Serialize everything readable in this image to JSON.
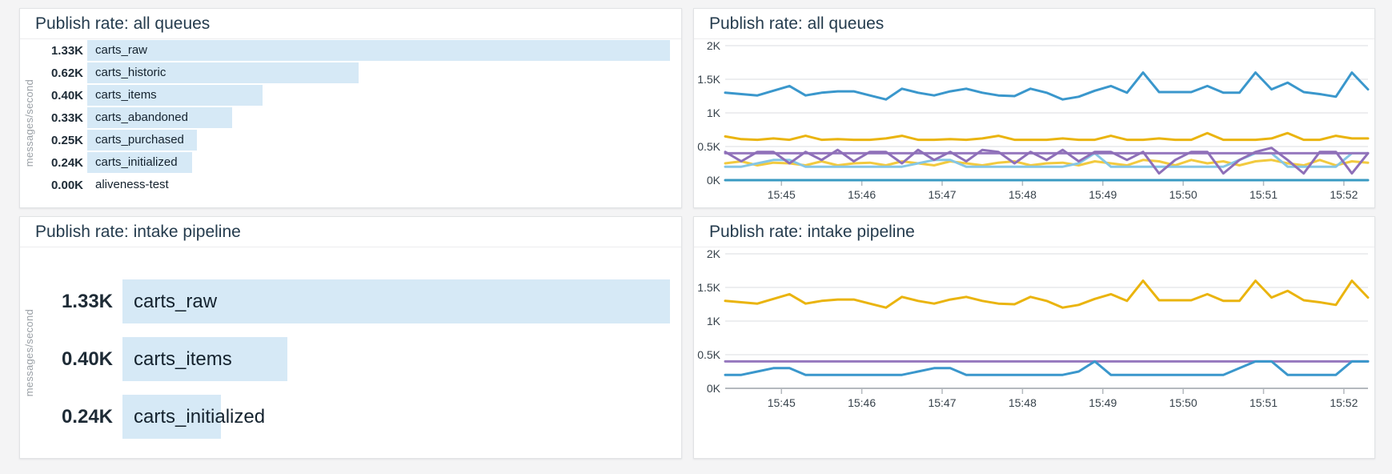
{
  "theme": {
    "page_bg": "#f4f4f5",
    "panel_bg": "#ffffff",
    "panel_border": "#e1e3e5",
    "title_color": "#243b4d",
    "bar_fill": "#d6e9f6",
    "value_text": "#1e2b36",
    "axis_text": "#37424b",
    "muted_label": "#9aa0a6",
    "grid_color": "#e7e9eb",
    "axis_color": "#b4b9be",
    "series_blue": "#3a97cc",
    "series_gold": "#eab40e",
    "series_purple": "#9678be",
    "series_purple_dark": "#8e6fb8",
    "series_yellow": "#f2ca3f",
    "series_cyan": "#85c6e5",
    "series_teal": "#3a9ac2"
  },
  "chart_data": [
    {
      "type": "bar",
      "orientation": "horizontal",
      "title": "Publish rate: all queues",
      "ylabel": "messages/second",
      "max": 1.33,
      "categories": [
        "carts_raw",
        "carts_historic",
        "carts_items",
        "carts_abandoned",
        "carts_purchased",
        "carts_initialized",
        "aliveness-test"
      ],
      "values": [
        1.33,
        0.62,
        0.4,
        0.33,
        0.25,
        0.24,
        0.0
      ],
      "value_labels": [
        "1.33K",
        "0.62K",
        "0.40K",
        "0.33K",
        "0.25K",
        "0.24K",
        "0.00K"
      ],
      "bar_color": "#d6e9f6"
    },
    {
      "type": "line",
      "title": "Publish rate: all queues",
      "ylabel": "",
      "ylim": [
        0,
        2
      ],
      "y_ticks": [
        {
          "v": 0,
          "label": "0K"
        },
        {
          "v": 0.5,
          "label": "0.5K"
        },
        {
          "v": 1,
          "label": "1K"
        },
        {
          "v": 1.5,
          "label": "1.5K"
        },
        {
          "v": 2,
          "label": "2K"
        }
      ],
      "x_range_minutes": [
        44.3,
        52.3
      ],
      "x_ticks": [
        {
          "m": 45,
          "label": "15:45"
        },
        {
          "m": 46,
          "label": "15:46"
        },
        {
          "m": 47,
          "label": "15:47"
        },
        {
          "m": 48,
          "label": "15:48"
        },
        {
          "m": 49,
          "label": "15:49"
        },
        {
          "m": 50,
          "label": "15:50"
        },
        {
          "m": 51,
          "label": "15:51"
        },
        {
          "m": 52,
          "label": "15:52"
        }
      ],
      "grid": true,
      "legend": "none",
      "series": [
        {
          "name": "carts_raw",
          "color": "#3a97cc",
          "values": [
            1.3,
            1.28,
            1.26,
            1.33,
            1.4,
            1.26,
            1.3,
            1.32,
            1.32,
            1.26,
            1.2,
            1.36,
            1.3,
            1.26,
            1.32,
            1.36,
            1.3,
            1.26,
            1.25,
            1.36,
            1.3,
            1.2,
            1.24,
            1.33,
            1.4,
            1.3,
            1.6,
            1.31,
            1.31,
            1.31,
            1.4,
            1.3,
            1.3,
            1.6,
            1.35,
            1.45,
            1.31,
            1.28,
            1.24,
            1.6,
            1.35
          ]
        },
        {
          "name": "carts_historic",
          "color": "#eab40e",
          "values": [
            0.65,
            0.61,
            0.6,
            0.62,
            0.6,
            0.66,
            0.6,
            0.61,
            0.6,
            0.6,
            0.62,
            0.66,
            0.6,
            0.6,
            0.61,
            0.6,
            0.62,
            0.66,
            0.6,
            0.6,
            0.6,
            0.62,
            0.6,
            0.6,
            0.66,
            0.6,
            0.6,
            0.62,
            0.6,
            0.6,
            0.7,
            0.6,
            0.6,
            0.6,
            0.62,
            0.7,
            0.6,
            0.6,
            0.66,
            0.62,
            0.62
          ]
        },
        {
          "name": "carts_purchased",
          "color": "#f2ca3f",
          "values": [
            0.25,
            0.28,
            0.22,
            0.26,
            0.25,
            0.22,
            0.28,
            0.22,
            0.25,
            0.26,
            0.22,
            0.28,
            0.25,
            0.22,
            0.28,
            0.25,
            0.22,
            0.26,
            0.28,
            0.22,
            0.25,
            0.26,
            0.22,
            0.28,
            0.25,
            0.22,
            0.3,
            0.28,
            0.22,
            0.3,
            0.25,
            0.28,
            0.22,
            0.28,
            0.3,
            0.25,
            0.22,
            0.3,
            0.22,
            0.28,
            0.26
          ]
        },
        {
          "name": "carts_initialized",
          "color": "#85c6e5",
          "values": [
            0.2,
            0.2,
            0.25,
            0.3,
            0.3,
            0.2,
            0.2,
            0.2,
            0.2,
            0.2,
            0.2,
            0.2,
            0.25,
            0.3,
            0.3,
            0.2,
            0.2,
            0.2,
            0.2,
            0.2,
            0.2,
            0.2,
            0.25,
            0.4,
            0.2,
            0.2,
            0.2,
            0.2,
            0.2,
            0.2,
            0.2,
            0.2,
            0.3,
            0.4,
            0.4,
            0.2,
            0.2,
            0.2,
            0.2,
            0.4,
            0.4
          ]
        },
        {
          "name": "carts_items",
          "color": "#9678be",
          "values": [
            0.4,
            0.4,
            0.4,
            0.4,
            0.4,
            0.4,
            0.4,
            0.4,
            0.4,
            0.4,
            0.4,
            0.4,
            0.4,
            0.4,
            0.4,
            0.4,
            0.4,
            0.4,
            0.4,
            0.4,
            0.4,
            0.4,
            0.4,
            0.4,
            0.4,
            0.4,
            0.4,
            0.4,
            0.4,
            0.4,
            0.4,
            0.4,
            0.4,
            0.4,
            0.4,
            0.4,
            0.4,
            0.4,
            0.4,
            0.4,
            0.4
          ]
        },
        {
          "name": "carts_abandoned",
          "color": "#8e6fb8",
          "values": [
            0.42,
            0.28,
            0.42,
            0.42,
            0.25,
            0.42,
            0.3,
            0.45,
            0.28,
            0.42,
            0.42,
            0.25,
            0.45,
            0.3,
            0.42,
            0.28,
            0.45,
            0.42,
            0.25,
            0.42,
            0.3,
            0.45,
            0.28,
            0.42,
            0.42,
            0.3,
            0.42,
            0.1,
            0.3,
            0.42,
            0.42,
            0.1,
            0.3,
            0.42,
            0.48,
            0.3,
            0.1,
            0.42,
            0.42,
            0.1,
            0.4
          ]
        },
        {
          "name": "aliveness-test",
          "color": "#3a9ac2",
          "values": [
            0,
            0,
            0,
            0,
            0,
            0,
            0,
            0,
            0,
            0,
            0,
            0,
            0,
            0,
            0,
            0,
            0,
            0,
            0,
            0,
            0,
            0,
            0,
            0,
            0,
            0,
            0,
            0,
            0,
            0,
            0,
            0,
            0,
            0,
            0,
            0,
            0,
            0,
            0,
            0,
            0
          ]
        }
      ]
    },
    {
      "type": "bar",
      "orientation": "horizontal",
      "title": "Publish rate: intake pipeline",
      "ylabel": "messages/second",
      "max": 1.33,
      "categories": [
        "carts_raw",
        "carts_items",
        "carts_initialized"
      ],
      "values": [
        1.33,
        0.4,
        0.24
      ],
      "value_labels": [
        "1.33K",
        "0.40K",
        "0.24K"
      ],
      "bar_color": "#d6e9f6"
    },
    {
      "type": "line",
      "title": "Publish rate: intake pipeline",
      "ylabel": "",
      "ylim": [
        0,
        2
      ],
      "y_ticks": [
        {
          "v": 0,
          "label": "0K"
        },
        {
          "v": 0.5,
          "label": "0.5K"
        },
        {
          "v": 1,
          "label": "1K"
        },
        {
          "v": 1.5,
          "label": "1.5K"
        },
        {
          "v": 2,
          "label": "2K"
        }
      ],
      "x_range_minutes": [
        44.3,
        52.3
      ],
      "x_ticks": [
        {
          "m": 45,
          "label": "15:45"
        },
        {
          "m": 46,
          "label": "15:46"
        },
        {
          "m": 47,
          "label": "15:47"
        },
        {
          "m": 48,
          "label": "15:48"
        },
        {
          "m": 49,
          "label": "15:49"
        },
        {
          "m": 50,
          "label": "15:50"
        },
        {
          "m": 51,
          "label": "15:51"
        },
        {
          "m": 52,
          "label": "15:52"
        }
      ],
      "grid": true,
      "legend": "none",
      "series": [
        {
          "name": "carts_raw",
          "color": "#eab40e",
          "values": [
            1.3,
            1.28,
            1.26,
            1.33,
            1.4,
            1.26,
            1.3,
            1.32,
            1.32,
            1.26,
            1.2,
            1.36,
            1.3,
            1.26,
            1.32,
            1.36,
            1.3,
            1.26,
            1.25,
            1.36,
            1.3,
            1.2,
            1.24,
            1.33,
            1.4,
            1.3,
            1.6,
            1.31,
            1.31,
            1.31,
            1.4,
            1.3,
            1.3,
            1.6,
            1.35,
            1.45,
            1.31,
            1.28,
            1.24,
            1.6,
            1.35
          ]
        },
        {
          "name": "carts_items",
          "color": "#9678be",
          "values": [
            0.4,
            0.4,
            0.4,
            0.4,
            0.4,
            0.4,
            0.4,
            0.4,
            0.4,
            0.4,
            0.4,
            0.4,
            0.4,
            0.4,
            0.4,
            0.4,
            0.4,
            0.4,
            0.4,
            0.4,
            0.4,
            0.4,
            0.4,
            0.4,
            0.4,
            0.4,
            0.4,
            0.4,
            0.4,
            0.4,
            0.4,
            0.4,
            0.4,
            0.4,
            0.4,
            0.4,
            0.4,
            0.4,
            0.4,
            0.4,
            0.4
          ]
        },
        {
          "name": "carts_initialized",
          "color": "#3a97cc",
          "values": [
            0.2,
            0.2,
            0.25,
            0.3,
            0.3,
            0.2,
            0.2,
            0.2,
            0.2,
            0.2,
            0.2,
            0.2,
            0.25,
            0.3,
            0.3,
            0.2,
            0.2,
            0.2,
            0.2,
            0.2,
            0.2,
            0.2,
            0.25,
            0.4,
            0.2,
            0.2,
            0.2,
            0.2,
            0.2,
            0.2,
            0.2,
            0.2,
            0.3,
            0.4,
            0.4,
            0.2,
            0.2,
            0.2,
            0.2,
            0.4,
            0.4
          ]
        }
      ]
    }
  ]
}
